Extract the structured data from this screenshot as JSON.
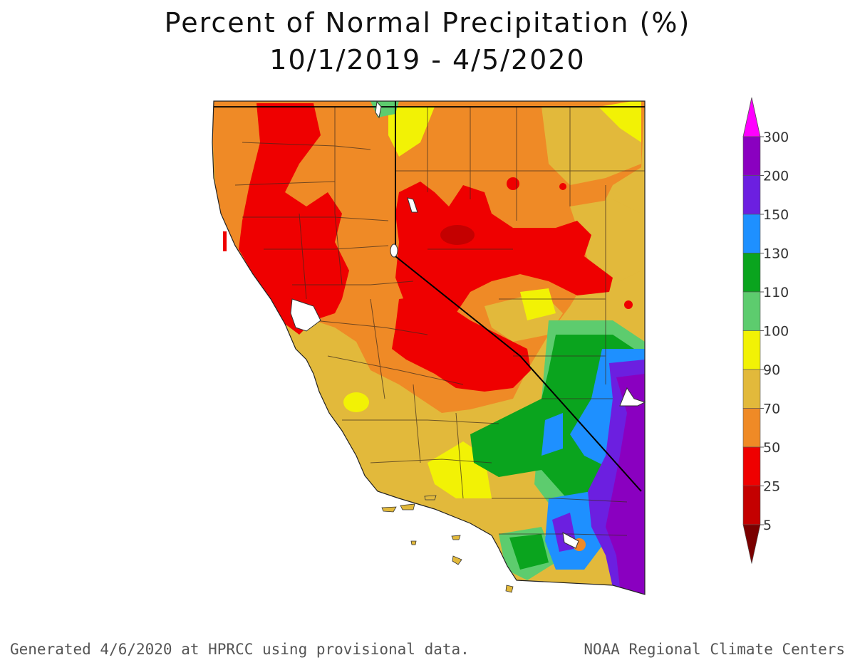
{
  "title": {
    "line1": "Percent of Normal Precipitation (%)",
    "line2": "10/1/2019 - 4/5/2020"
  },
  "legend": {
    "labels": [
      "300",
      "200",
      "150",
      "130",
      "110",
      "100",
      "90",
      "70",
      "50",
      "25",
      "5"
    ],
    "colors": [
      "#8a00c0",
      "#6c1fe0",
      "#1e90ff",
      "#0aa41e",
      "#5dcc6e",
      "#f2f205",
      "#e2b93b",
      "#ef8a26",
      "#ef0000",
      "#c40000",
      "#7a0000"
    ],
    "top_color": "#ff00ff"
  },
  "footer": {
    "left": "Generated 4/6/2020 at HPRCC using provisional data.",
    "right": "NOAA Regional Climate Centers"
  }
}
